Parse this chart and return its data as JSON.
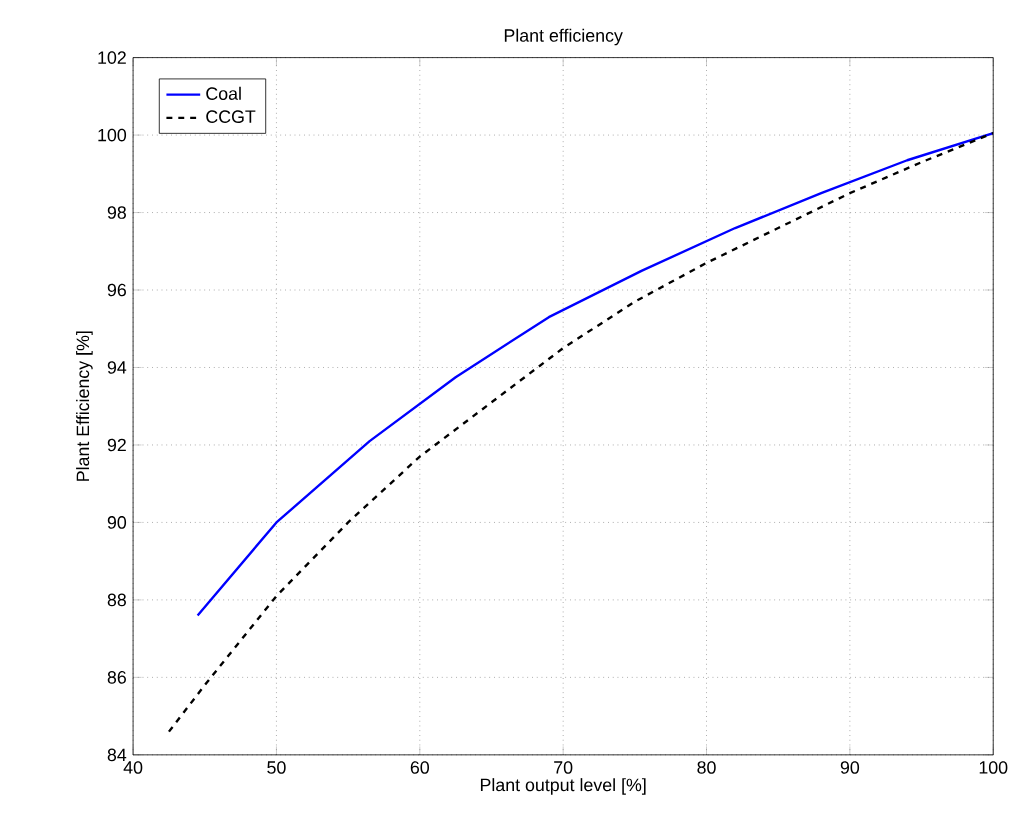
{
  "chart_data": {
    "type": "line",
    "title": "Plant efficiency",
    "xlabel": "Plant output level [%]",
    "ylabel": "Plant Efficiency [%]",
    "xlim": [
      40,
      100
    ],
    "xticks": [
      40,
      50,
      60,
      70,
      80,
      90,
      100
    ],
    "ylim": [
      84,
      102
    ],
    "yticks": [
      84,
      86,
      88,
      90,
      92,
      94,
      96,
      98,
      100,
      102
    ],
    "grid": true,
    "legend": "top left",
    "series": [
      {
        "name": "Coal",
        "color": "#0000ff",
        "line_style": "solid",
        "x": [
          44.5,
          50,
          56.5,
          62.5,
          69,
          75.5,
          82,
          88,
          94,
          100
        ],
        "values": [
          87.6,
          90.0,
          92.1,
          93.75,
          95.3,
          96.5,
          97.6,
          98.5,
          99.35,
          100.05
        ]
      },
      {
        "name": "CCGT",
        "color": "#000000",
        "line_style": "dashed",
        "x": [
          42.5,
          45,
          50,
          55,
          60,
          65,
          70,
          75,
          80,
          85,
          90,
          95,
          100
        ],
        "values": [
          84.6,
          85.8,
          88.1,
          90.0,
          91.7,
          93.1,
          94.5,
          95.7,
          96.7,
          97.6,
          98.5,
          99.3,
          100.05
        ]
      }
    ]
  }
}
